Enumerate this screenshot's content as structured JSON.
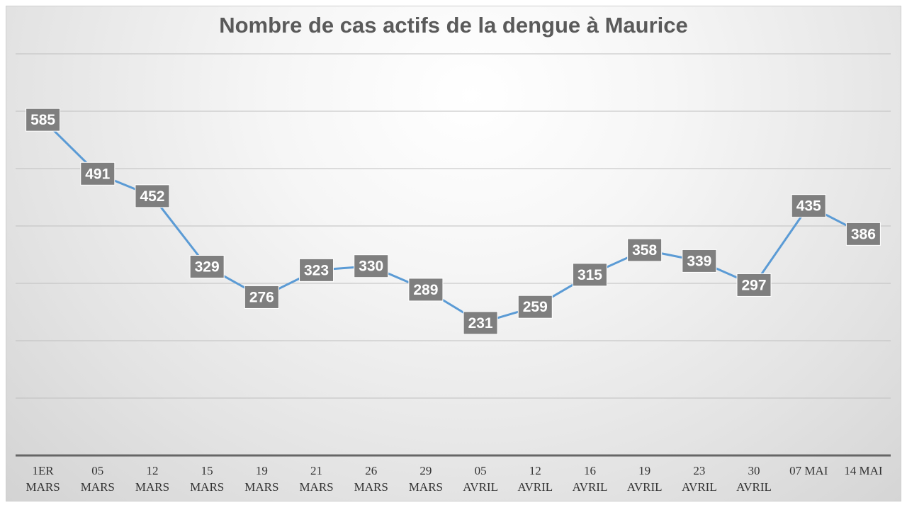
{
  "chart_data": {
    "type": "line",
    "title": "Nombre de cas actifs de la dengue à Maurice",
    "categories": [
      [
        "1ER",
        "MARS"
      ],
      [
        "05",
        "MARS"
      ],
      [
        "12",
        "MARS"
      ],
      [
        "15",
        "MARS"
      ],
      [
        "19",
        "MARS"
      ],
      [
        "21",
        "MARS"
      ],
      [
        "26",
        "MARS"
      ],
      [
        "29",
        "MARS"
      ],
      [
        "05",
        "AVRIL"
      ],
      [
        "12",
        "AVRIL"
      ],
      [
        "16",
        "AVRIL"
      ],
      [
        "19",
        "AVRIL"
      ],
      [
        "23",
        "AVRIL"
      ],
      [
        "30",
        "AVRIL"
      ],
      [
        "07 MAI"
      ],
      [
        "14 MAI"
      ]
    ],
    "series": [
      {
        "values": [
          585,
          491,
          452,
          329,
          276,
          323,
          330,
          289,
          231,
          259,
          315,
          358,
          339,
          297,
          435,
          386
        ]
      }
    ],
    "ylim": [
      0,
      700
    ],
    "gridlines": [
      100,
      200,
      300,
      400,
      500,
      600,
      700
    ],
    "y_ticks_visible": false,
    "data_labels": true,
    "legend": "none",
    "grid": true,
    "colors": {
      "line": "#5b9bd5",
      "label_box": "#7f7f7f"
    }
  }
}
